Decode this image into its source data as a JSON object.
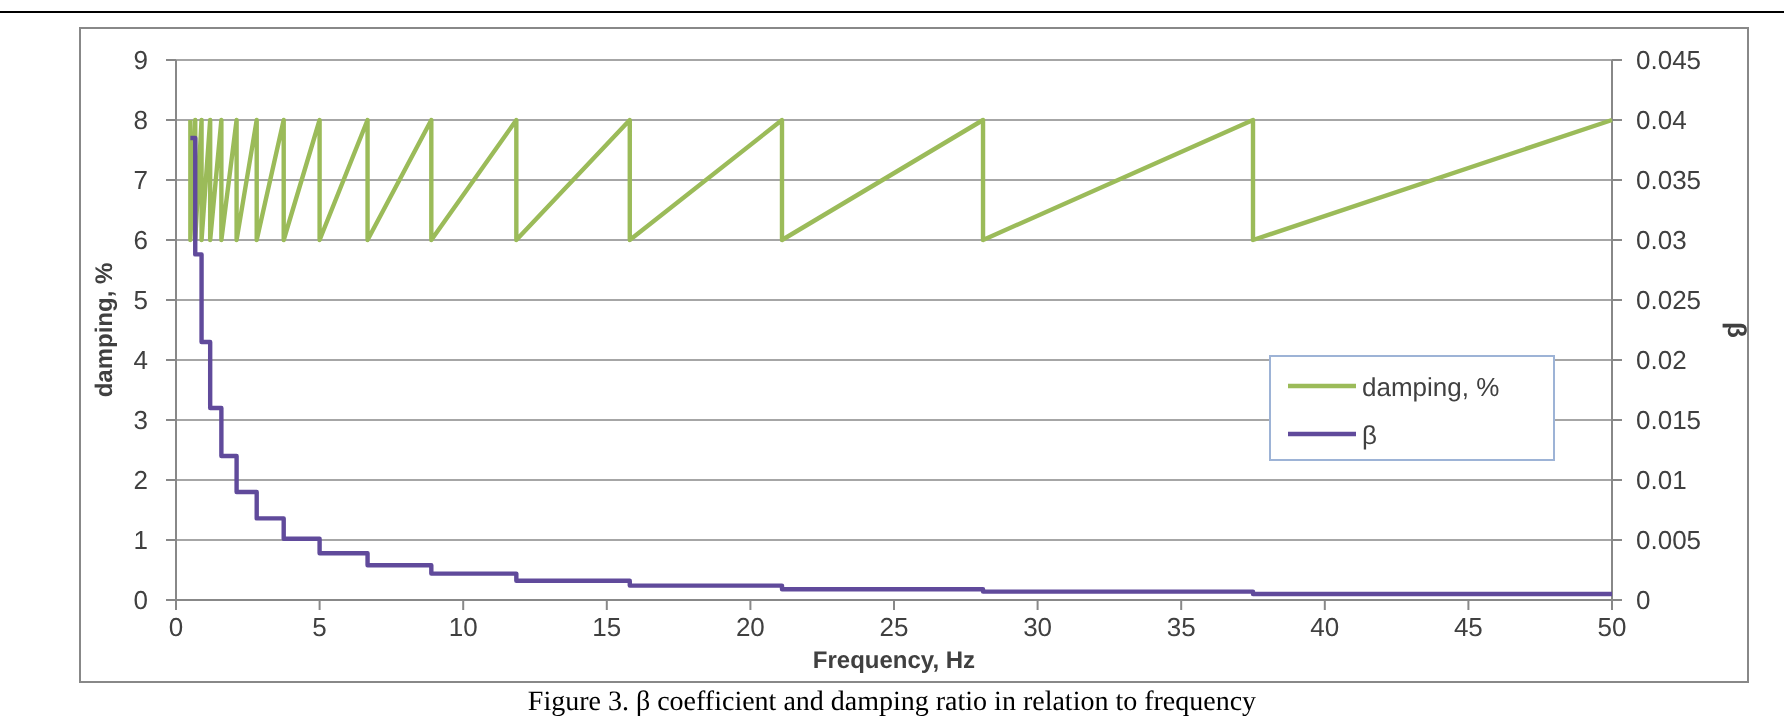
{
  "chart_data": {
    "type": "line",
    "xlabel": "Frequency, Hz",
    "ylabel": "damping, %",
    "y2label": "β",
    "xlim": [
      0,
      50
    ],
    "xticks": [
      0,
      5,
      10,
      15,
      20,
      25,
      30,
      35,
      40,
      45,
      50
    ],
    "ylim": [
      0,
      9
    ],
    "yticks": [
      0,
      1,
      2,
      3,
      4,
      5,
      6,
      7,
      8,
      9
    ],
    "y2lim": [
      0,
      0.045
    ],
    "y2ticks": [
      0,
      0.005,
      0.01,
      0.015,
      0.02,
      0.025,
      0.03,
      0.035,
      0.04,
      0.045
    ],
    "grid": "y",
    "legend": "right",
    "marker": "none",
    "annotations": [
      "Figure 3. β coefficient and damping ratio in relation to frequency"
    ],
    "series": [
      {
        "name": "damping, %",
        "color": "#9bbb59",
        "x": [
          0.5,
          0.5,
          0.67,
          0.67,
          0.89,
          0.89,
          1.19,
          1.19,
          1.58,
          1.58,
          2.11,
          2.11,
          2.81,
          2.81,
          3.75,
          3.75,
          5,
          5,
          6.67,
          6.67,
          8.89,
          8.89,
          11.85,
          11.85,
          15.8,
          15.8,
          21.1,
          21.1,
          28.1,
          28.1,
          37.5,
          37.5,
          50
        ],
        "values": [
          8,
          6,
          8,
          6,
          8,
          6,
          8,
          6,
          8,
          6,
          8,
          6,
          8,
          6,
          8,
          6,
          8,
          6,
          8,
          6,
          8,
          6,
          8,
          6,
          8,
          6,
          8,
          6,
          8,
          6,
          8,
          6,
          8
        ]
      },
      {
        "name": "β",
        "type": "step",
        "axis": "y2",
        "color": "#604a9b",
        "x": [
          0.5,
          0.67,
          0.89,
          1.19,
          1.58,
          2.11,
          2.81,
          3.75,
          5,
          6.67,
          8.89,
          11.85,
          15.8,
          21.1,
          28.1,
          37.5,
          50
        ],
        "values": [
          0.0385,
          0.0288,
          0.0215,
          0.016,
          0.012,
          0.009,
          0.0068,
          0.0051,
          0.0039,
          0.0029,
          0.0022,
          0.0016,
          0.0012,
          0.0009,
          0.0007,
          0.0005,
          0.0005
        ]
      }
    ]
  }
}
